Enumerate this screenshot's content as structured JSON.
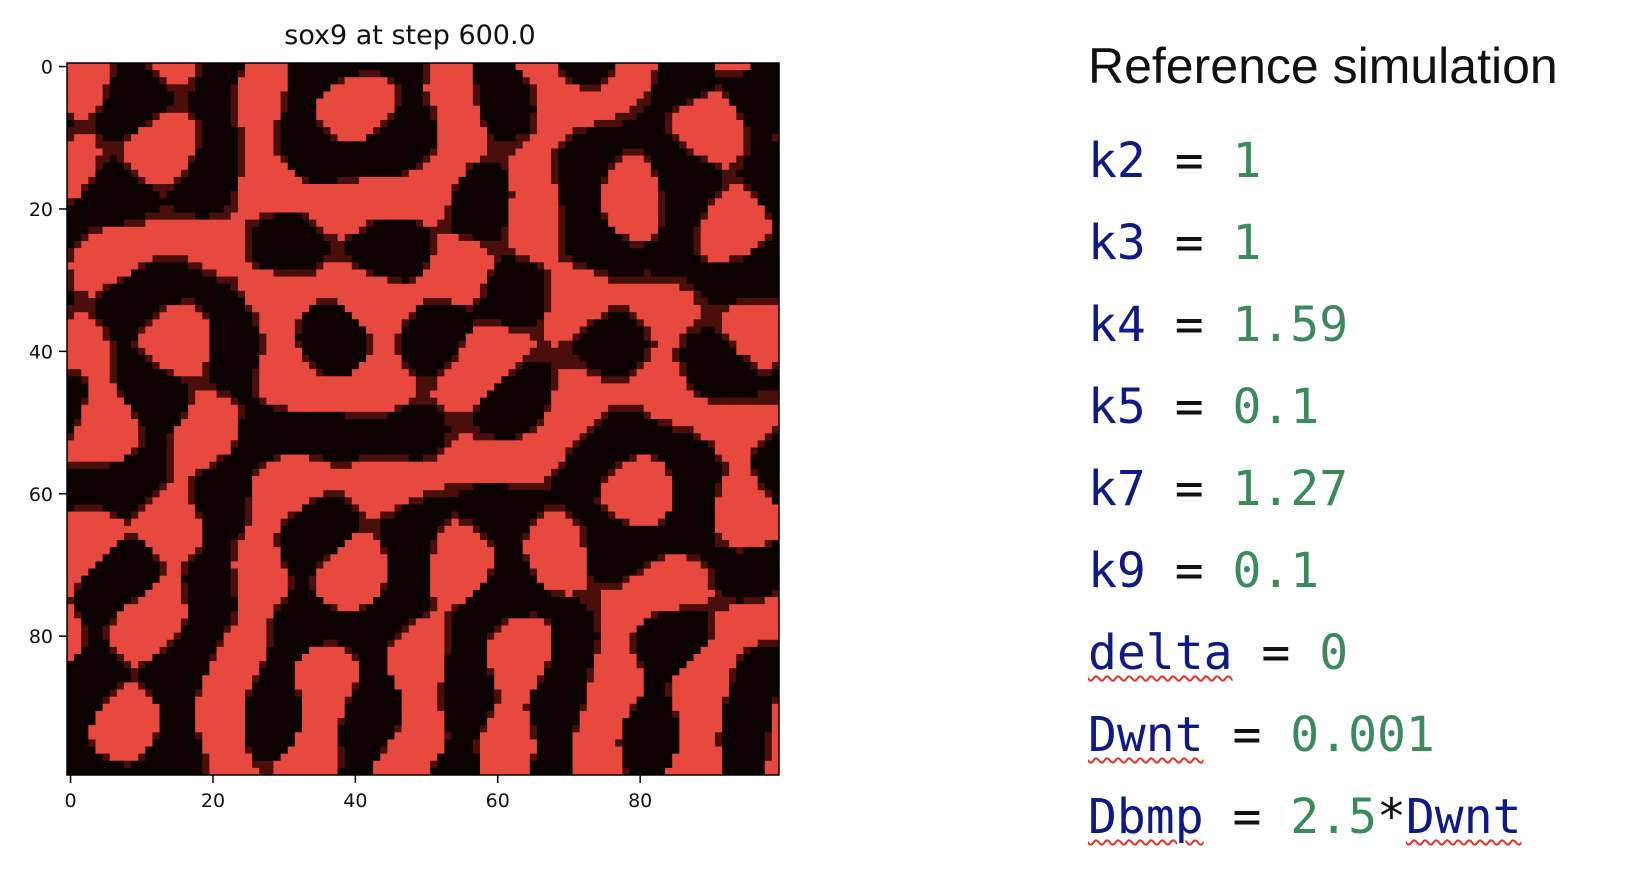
{
  "chart_data": {
    "type": "heatmap",
    "title": "sox9 at step 600.0",
    "grid_size": 100,
    "x_ticks": [
      "0",
      "20",
      "40",
      "60",
      "80"
    ],
    "y_ticks": [
      "0",
      "20",
      "40",
      "60",
      "80"
    ],
    "xlim": [
      -0.5,
      99.5
    ],
    "ylim": [
      99.5,
      -0.5
    ],
    "colormap": {
      "low": "#0d0200",
      "high": "#e8493f"
    },
    "pattern": "labyrinthine stripes (Turing pattern) of high sox9 (red) separated by low sox9 (black)"
  },
  "panel": {
    "title": "Reference simulation",
    "params": [
      {
        "name": "k2",
        "value": "1"
      },
      {
        "name": "k3",
        "value": "1"
      },
      {
        "name": "k4",
        "value": "1.59"
      },
      {
        "name": "k5",
        "value": "0.1"
      },
      {
        "name": "k7",
        "value": "1.27"
      },
      {
        "name": "k9",
        "value": "0.1"
      },
      {
        "name": "delta",
        "value": "0"
      },
      {
        "name": "Dwnt",
        "value": "0.001"
      },
      {
        "name": "Dbmp",
        "value": "2.5",
        "op": "*",
        "ref": "Dwnt"
      }
    ]
  },
  "colors": {
    "param_name": "#0f1a84",
    "param_value": "#3a8a5e",
    "spellcheck_underline": "#e0352b"
  }
}
